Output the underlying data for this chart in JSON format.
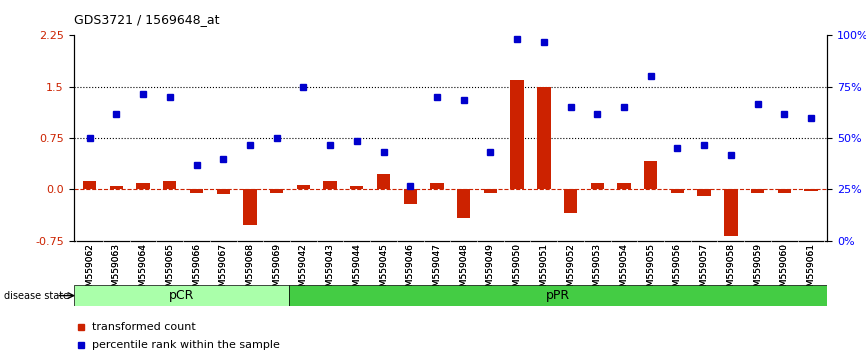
{
  "title": "GDS3721 / 1569648_at",
  "samples": [
    "GSM559062",
    "GSM559063",
    "GSM559064",
    "GSM559065",
    "GSM559066",
    "GSM559067",
    "GSM559068",
    "GSM559069",
    "GSM559042",
    "GSM559043",
    "GSM559044",
    "GSM559045",
    "GSM559046",
    "GSM559047",
    "GSM559048",
    "GSM559049",
    "GSM559050",
    "GSM559051",
    "GSM559052",
    "GSM559053",
    "GSM559054",
    "GSM559055",
    "GSM559056",
    "GSM559057",
    "GSM559058",
    "GSM559059",
    "GSM559060",
    "GSM559061"
  ],
  "transformed_count": [
    0.12,
    0.05,
    0.1,
    0.12,
    -0.05,
    -0.07,
    -0.52,
    -0.05,
    0.07,
    0.12,
    0.05,
    0.22,
    -0.22,
    0.1,
    -0.42,
    -0.05,
    1.6,
    1.5,
    -0.35,
    0.1,
    0.1,
    0.42,
    -0.05,
    -0.1,
    -0.68,
    -0.05,
    -0.05,
    -0.03
  ],
  "percentile_rank": [
    0.75,
    1.1,
    1.4,
    1.35,
    0.35,
    0.45,
    0.65,
    0.75,
    1.5,
    0.65,
    0.7,
    0.55,
    0.05,
    1.35,
    1.3,
    0.55,
    2.2,
    2.15,
    1.2,
    1.1,
    1.2,
    1.65,
    0.6,
    0.65,
    0.5,
    1.25,
    1.1,
    1.05
  ],
  "pCR_count": 8,
  "pPR_count": 20,
  "ylim": [
    -0.75,
    2.25
  ],
  "yticks_left": [
    -0.75,
    0.0,
    0.75,
    1.5,
    2.25
  ],
  "yticks_right": [
    0,
    25,
    50,
    75,
    100
  ],
  "hlines": [
    0.75,
    1.5
  ],
  "bar_color": "#cc2200",
  "dot_color": "#0000cc",
  "pcr_bg": "#ccffcc",
  "ppr_bg": "#44cc44",
  "axis_bg": "#e8e8e8",
  "legend_red": "transformed count",
  "legend_blue": "percentile rank within the sample"
}
